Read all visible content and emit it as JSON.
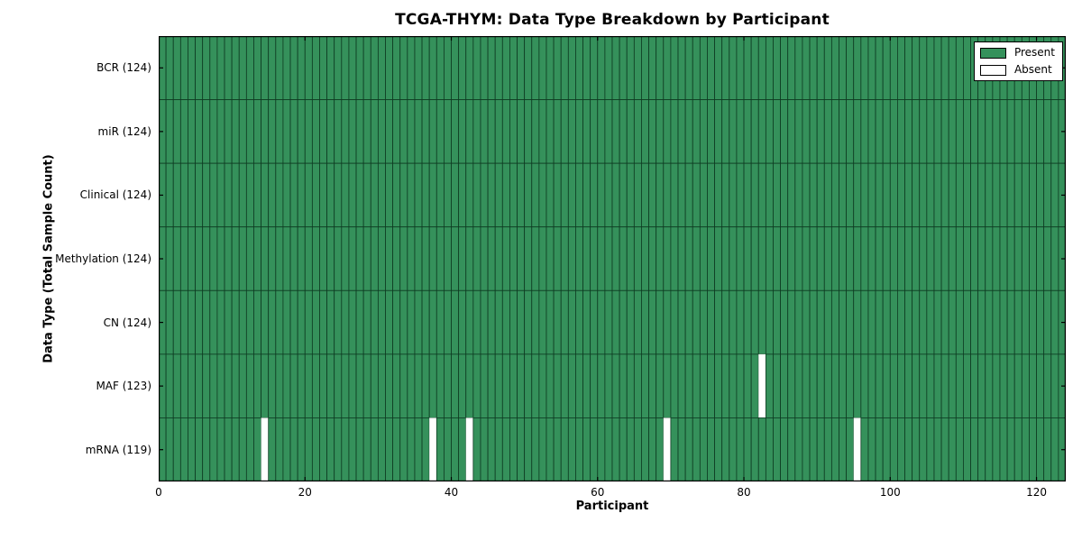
{
  "chart_data": {
    "type": "heatmap",
    "title": "TCGA-THYM: Data Type Breakdown by Participant",
    "xlabel": "Participant",
    "ylabel": "Data Type (Total Sample Count)",
    "xlim": [
      0,
      124
    ],
    "n_participants": 124,
    "x_ticks": [
      0,
      20,
      40,
      60,
      80,
      100,
      120
    ],
    "rows": [
      {
        "label": "BCR (124)",
        "data_type": "BCR",
        "total_samples": 124,
        "absent_participants": []
      },
      {
        "label": "miR (124)",
        "data_type": "miR",
        "total_samples": 124,
        "absent_participants": []
      },
      {
        "label": "Clinical (124)",
        "data_type": "Clinical",
        "total_samples": 124,
        "absent_participants": []
      },
      {
        "label": "Methylation (124)",
        "data_type": "Methylation",
        "total_samples": 124,
        "absent_participants": []
      },
      {
        "label": "CN (124)",
        "data_type": "CN",
        "total_samples": 124,
        "absent_participants": []
      },
      {
        "label": "MAF (123)",
        "data_type": "MAF",
        "total_samples": 123,
        "absent_participants": [
          82
        ]
      },
      {
        "label": "mRNA (119)",
        "data_type": "mRNA",
        "total_samples": 119,
        "absent_participants": [
          14,
          37,
          42,
          69,
          95
        ]
      }
    ],
    "legend_items": [
      {
        "label": "Present",
        "color": "#35915B"
      },
      {
        "label": "Absent",
        "color": "#FFFFFF"
      }
    ],
    "legend_position": "upper right",
    "grid": true,
    "present_color": "#35915B",
    "absent_color": "#FFFFFF",
    "cell_border_color": "#0E3B22",
    "frame_color": "#000000"
  }
}
